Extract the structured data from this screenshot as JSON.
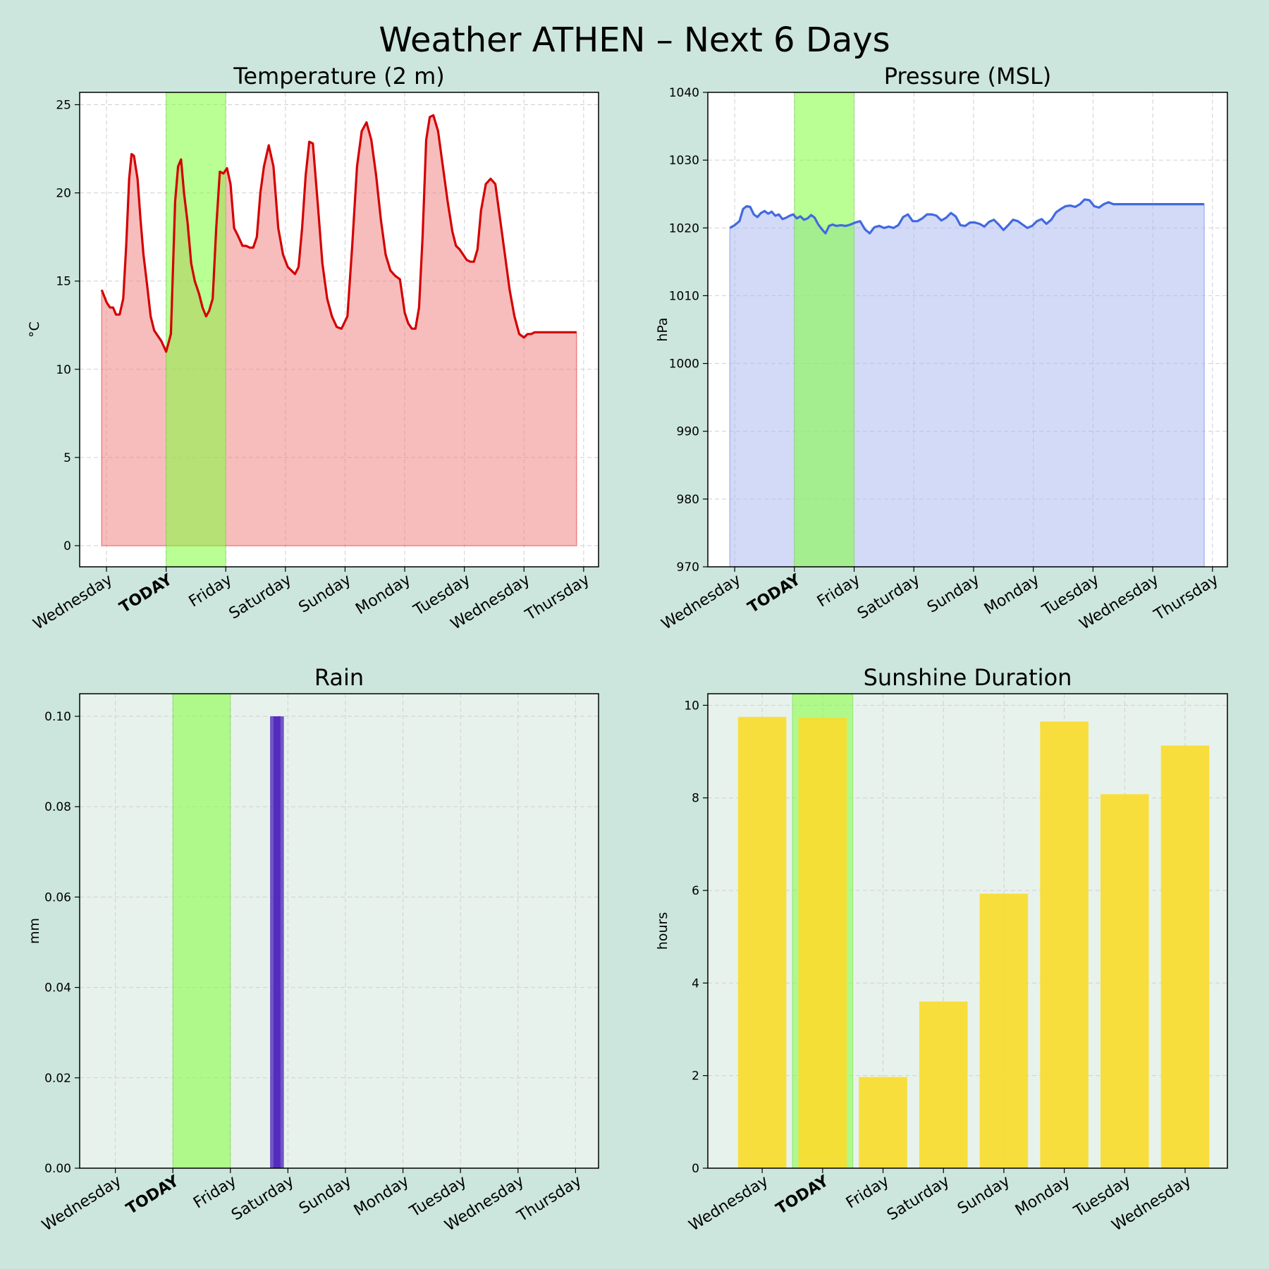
{
  "title": "Weather ATHEN – Next 6 Days",
  "colors": {
    "page_bg": "#cce6dd",
    "today_band": "#7fff3a",
    "today_label": "#55bb00",
    "temperature_line": "#d40000",
    "temperature_fill": "#f08080",
    "pressure_line": "#4169e1",
    "pressure_fill": "#a8b8f0",
    "rain_bar": "#4a1fb8",
    "sunshine_bar": "#f9dc2e",
    "lower_panel_bg": "#e8f2ec"
  },
  "chart_data": [
    {
      "id": "temperature",
      "type": "area",
      "title": "Temperature (2 m)",
      "ylabel": "°C",
      "ylim": [
        -1.2,
        25.7
      ],
      "yticks": [
        0,
        5,
        10,
        15,
        20,
        25
      ],
      "xlim": [
        -0.45,
        8.25
      ],
      "xticks": [
        "Wednesday",
        "TODAY",
        "Friday",
        "Saturday",
        "Sunday",
        "Monday",
        "Tuesday",
        "Wednesday",
        "Thursday"
      ],
      "highlight": {
        "label": "TODAY",
        "from": 1,
        "to": 2
      },
      "x_unit": "day index (0 = Wednesday)",
      "x": [
        -0.08,
        0.0,
        0.06,
        0.11,
        0.16,
        0.22,
        0.28,
        0.33,
        0.38,
        0.42,
        0.46,
        0.52,
        0.57,
        0.62,
        0.68,
        0.74,
        0.8,
        0.86,
        0.92,
        1.0,
        1.08,
        1.15,
        1.2,
        1.25,
        1.3,
        1.36,
        1.42,
        1.48,
        1.55,
        1.61,
        1.67,
        1.72,
        1.78,
        1.84,
        1.9,
        1.96,
        2.02,
        2.08,
        2.14,
        2.2,
        2.28,
        2.34,
        2.4,
        2.46,
        2.52,
        2.58,
        2.64,
        2.72,
        2.8,
        2.88,
        2.96,
        3.04,
        3.1,
        3.16,
        3.22,
        3.28,
        3.34,
        3.4,
        3.46,
        3.54,
        3.62,
        3.7,
        3.78,
        3.86,
        3.94,
        4.04,
        4.12,
        4.2,
        4.28,
        4.36,
        4.44,
        4.52,
        4.6,
        4.68,
        4.76,
        4.84,
        4.92,
        5.0,
        5.06,
        5.12,
        5.18,
        5.24,
        5.3,
        5.36,
        5.42,
        5.48,
        5.56,
        5.64,
        5.72,
        5.8,
        5.86,
        5.92,
        5.98,
        6.04,
        6.1,
        6.16,
        6.22,
        6.28,
        6.36,
        6.44,
        6.52,
        6.6,
        6.68,
        6.76,
        6.84,
        6.92,
        7.0,
        7.06,
        7.12,
        7.18,
        7.24,
        7.3,
        7.36,
        7.42,
        7.5,
        7.58,
        7.66,
        7.74,
        7.82,
        7.88
      ],
      "y": [
        14.5,
        13.8,
        13.5,
        13.5,
        13.1,
        13.1,
        14.0,
        17.0,
        20.8,
        22.2,
        22.1,
        20.8,
        18.5,
        16.5,
        14.8,
        13.0,
        12.2,
        11.9,
        11.6,
        11.0,
        12.0,
        19.5,
        21.5,
        21.9,
        20.0,
        18.3,
        16.0,
        15.0,
        14.3,
        13.5,
        13.0,
        13.3,
        14.0,
        18.0,
        21.2,
        21.1,
        21.4,
        20.5,
        18.0,
        17.6,
        17.0,
        17.0,
        16.9,
        16.9,
        17.5,
        20.0,
        21.5,
        22.7,
        21.5,
        18.0,
        16.5,
        15.8,
        15.6,
        15.4,
        15.8,
        18.0,
        21.0,
        22.9,
        22.8,
        19.5,
        16.0,
        14.0,
        13.0,
        12.4,
        12.3,
        13.0,
        17.0,
        21.5,
        23.5,
        24.0,
        23.0,
        21.0,
        18.5,
        16.5,
        15.6,
        15.3,
        15.1,
        13.2,
        12.6,
        12.3,
        12.3,
        13.5,
        17.5,
        23.0,
        24.3,
        24.4,
        23.5,
        21.5,
        19.5,
        17.8,
        17.0,
        16.8,
        16.5,
        16.2,
        16.1,
        16.1,
        16.8,
        19.0,
        20.5,
        20.8,
        20.5,
        18.5,
        16.5,
        14.5,
        13.0,
        12.0,
        11.8,
        12.0,
        12.0,
        12.1,
        12.1,
        12.1,
        12.1,
        12.1,
        12.1,
        12.1,
        12.1,
        12.1,
        12.1,
        12.1
      ]
    },
    {
      "id": "pressure",
      "type": "area",
      "title": "Pressure (MSL)",
      "ylabel": "hPa",
      "ylim": [
        970,
        1040
      ],
      "yticks": [
        970,
        980,
        990,
        1000,
        1010,
        1020,
        1030,
        1040
      ],
      "xlim": [
        -0.45,
        8.25
      ],
      "xticks": [
        "Wednesday",
        "TODAY",
        "Friday",
        "Saturday",
        "Sunday",
        "Monday",
        "Tuesday",
        "Wednesday",
        "Thursday"
      ],
      "highlight": {
        "label": "TODAY",
        "from": 1,
        "to": 2
      },
      "x_unit": "day index (0 = Wednesday)",
      "x": [
        -0.08,
        0.0,
        0.08,
        0.14,
        0.2,
        0.26,
        0.32,
        0.38,
        0.44,
        0.5,
        0.56,
        0.62,
        0.68,
        0.74,
        0.8,
        0.86,
        0.92,
        0.98,
        1.04,
        1.1,
        1.16,
        1.22,
        1.28,
        1.34,
        1.4,
        1.46,
        1.52,
        1.58,
        1.64,
        1.7,
        1.78,
        1.86,
        1.94,
        2.02,
        2.1,
        2.18,
        2.26,
        2.34,
        2.42,
        2.5,
        2.58,
        2.66,
        2.74,
        2.82,
        2.9,
        2.98,
        3.06,
        3.14,
        3.22,
        3.3,
        3.38,
        3.46,
        3.54,
        3.62,
        3.7,
        3.78,
        3.86,
        3.94,
        4.02,
        4.1,
        4.18,
        4.26,
        4.34,
        4.42,
        4.5,
        4.58,
        4.66,
        4.74,
        4.82,
        4.9,
        4.98,
        5.06,
        5.14,
        5.22,
        5.3,
        5.38,
        5.46,
        5.54,
        5.62,
        5.7,
        5.78,
        5.86,
        5.94,
        6.02,
        6.1,
        6.18,
        6.26,
        6.34,
        6.42,
        6.5,
        6.58,
        6.66,
        6.74,
        6.82,
        6.9,
        6.98,
        7.06,
        7.14,
        7.22,
        7.3,
        7.38,
        7.46,
        7.54,
        7.62,
        7.7,
        7.78,
        7.86
      ],
      "y": [
        1020.0,
        1020.4,
        1021.0,
        1022.8,
        1023.2,
        1023.1,
        1022.0,
        1021.6,
        1022.2,
        1022.5,
        1022.1,
        1022.4,
        1021.8,
        1022.0,
        1021.3,
        1021.5,
        1021.8,
        1022.0,
        1021.4,
        1021.7,
        1021.2,
        1021.4,
        1021.9,
        1021.5,
        1020.5,
        1019.8,
        1019.2,
        1020.3,
        1020.5,
        1020.3,
        1020.4,
        1020.3,
        1020.5,
        1020.8,
        1021.0,
        1019.8,
        1019.2,
        1020.1,
        1020.3,
        1020.0,
        1020.2,
        1020.0,
        1020.4,
        1021.6,
        1022.0,
        1021.0,
        1021.0,
        1021.4,
        1022.0,
        1022.0,
        1021.8,
        1021.1,
        1021.5,
        1022.2,
        1021.7,
        1020.4,
        1020.3,
        1020.8,
        1020.8,
        1020.6,
        1020.2,
        1020.9,
        1021.2,
        1020.5,
        1019.7,
        1020.4,
        1021.2,
        1021.0,
        1020.5,
        1020.0,
        1020.3,
        1021.0,
        1021.3,
        1020.6,
        1021.2,
        1022.3,
        1022.8,
        1023.2,
        1023.3,
        1023.1,
        1023.5,
        1024.2,
        1024.1,
        1023.2,
        1023.0,
        1023.5,
        1023.8,
        1023.5,
        1023.5,
        1023.5,
        1023.5,
        1023.5,
        1023.5,
        1023.5,
        1023.5,
        1023.5,
        1023.5,
        1023.5,
        1023.5,
        1023.5,
        1023.5,
        1023.5,
        1023.5,
        1023.5,
        1023.5,
        1023.5,
        1023.5
      ]
    },
    {
      "id": "rain",
      "type": "bar",
      "title": "Rain",
      "ylabel": "mm",
      "ylim": [
        0,
        0.105
      ],
      "yticks": [
        "0.00",
        "0.02",
        "0.04",
        "0.06",
        "0.08",
        "0.10"
      ],
      "xlim": [
        -0.62,
        8.4
      ],
      "xticks": [
        "Wednesday",
        "TODAY",
        "Friday",
        "Saturday",
        "Sunday",
        "Monday",
        "Tuesday",
        "Wednesday",
        "Thursday"
      ],
      "highlight": {
        "label": "TODAY",
        "from": 1,
        "to": 2
      },
      "x_unit": "day index (0 = Wednesday)",
      "bars": [
        {
          "x": 2.75,
          "value": 0.1
        },
        {
          "x": 2.81,
          "value": 0.1
        },
        {
          "x": 2.87,
          "value": 0.1
        }
      ]
    },
    {
      "id": "sunshine",
      "type": "bar",
      "title": "Sunshine Duration",
      "ylabel": "hours",
      "ylim": [
        0,
        10.25
      ],
      "yticks": [
        0,
        2,
        4,
        6,
        8,
        10
      ],
      "xlim": [
        -0.4,
        8.2
      ],
      "xticks": [
        "Wednesday",
        "TODAY",
        "Friday",
        "Saturday",
        "Sunday",
        "Monday",
        "Tuesday",
        "Wednesday"
      ],
      "highlight": {
        "label": "TODAY",
        "from": 1,
        "to": 2
      },
      "x_unit": "day index (0 = Wednesday)",
      "bars": [
        {
          "x": 0.5,
          "value": 9.75
        },
        {
          "x": 1.5,
          "value": 9.73
        },
        {
          "x": 2.5,
          "value": 1.97
        },
        {
          "x": 3.5,
          "value": 3.6
        },
        {
          "x": 4.5,
          "value": 5.93
        },
        {
          "x": 5.5,
          "value": 9.65
        },
        {
          "x": 6.5,
          "value": 8.08
        },
        {
          "x": 7.5,
          "value": 9.13
        }
      ]
    }
  ]
}
